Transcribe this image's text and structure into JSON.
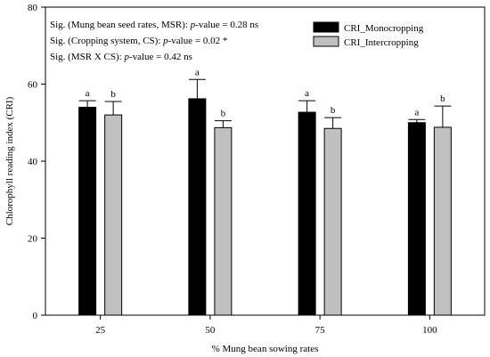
{
  "chart_data": {
    "type": "bar",
    "categories": [
      "25",
      "50",
      "75",
      "100"
    ],
    "series": [
      {
        "name": "CRI_Monocropping",
        "color": "#000000",
        "values": [
          54.0,
          56.2,
          52.7,
          50.0
        ],
        "error": [
          1.7,
          5.0,
          3.0,
          0.8
        ],
        "letters": [
          "a",
          "a",
          "a",
          "a"
        ]
      },
      {
        "name": "CRI_Intercropping",
        "color": "#c0c0c0",
        "values": [
          52.0,
          48.7,
          48.5,
          48.8
        ],
        "error": [
          3.5,
          1.8,
          2.8,
          5.5
        ],
        "letters": [
          "b",
          "b",
          "b",
          "b"
        ]
      }
    ],
    "ylim": [
      0,
      80
    ],
    "yticks": [
      "0",
      "20",
      "40",
      "60",
      "80"
    ],
    "xlabel": "% Mung bean sowing rates",
    "ylabel": "Chlorophyll reading index (CRI)",
    "legend_position": "top-right",
    "grid": false,
    "annotations": [
      {
        "prefix": "Sig. (Mung bean seed rates, MSR): ",
        "italic": "p",
        "suffix": "-value = 0.28 ns"
      },
      {
        "prefix": "Sig. (Cropping system, CS): ",
        "italic": "p",
        "suffix": "-value = 0.02 *"
      },
      {
        "prefix": "Sig. (MSR X CS): ",
        "italic": "p",
        "suffix": "-value = 0.42 ns"
      }
    ]
  }
}
